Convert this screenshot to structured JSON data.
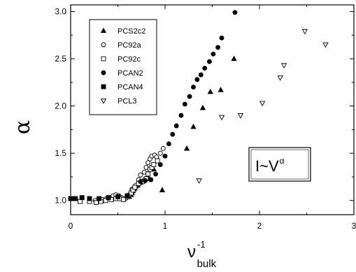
{
  "chart_data": {
    "type": "scatter",
    "title": "",
    "xlabel": {
      "base": "ν",
      "sup": "-1",
      "sub": "bulk"
    },
    "ylabel": "α",
    "xlim": [
      0,
      3
    ],
    "ylim": [
      0.85,
      3.07
    ],
    "x_ticks": [
      "0",
      "1",
      "2",
      "3"
    ],
    "y_ticks": [
      "1.0",
      "1.5",
      "2.0",
      "2.5",
      "3.0"
    ],
    "grid": false,
    "legend_position": "top-left",
    "annotation": {
      "base": "I~V",
      "sup": "α"
    },
    "series": [
      {
        "name": "PCS2c2",
        "marker": "triangle-up",
        "filled": true,
        "points": [
          [
            0.58,
            1.03
          ],
          [
            0.62,
            1.04
          ],
          [
            0.64,
            1.06
          ],
          [
            0.65,
            1.08
          ],
          [
            0.66,
            1.1
          ],
          [
            0.67,
            1.12
          ],
          [
            0.68,
            1.13
          ],
          [
            0.69,
            1.15
          ],
          [
            0.71,
            1.16
          ],
          [
            0.72,
            1.18
          ],
          [
            0.74,
            1.19
          ],
          [
            0.76,
            1.2
          ],
          [
            0.78,
            1.22
          ],
          [
            0.82,
            1.25
          ],
          [
            0.88,
            1.33
          ],
          [
            0.97,
            1.11
          ],
          [
            1.23,
            1.55
          ],
          [
            1.3,
            1.78
          ],
          [
            1.4,
            1.98
          ],
          [
            1.48,
            2.15
          ],
          [
            1.59,
            2.17
          ],
          [
            1.73,
            2.5
          ]
        ]
      },
      {
        "name": "PC92a",
        "marker": "circle",
        "filled": false,
        "points": [
          [
            0.2,
            1.0
          ],
          [
            0.26,
            1.0
          ],
          [
            0.3,
            1.01
          ],
          [
            0.34,
            1.01
          ],
          [
            0.38,
            1.02
          ],
          [
            0.4,
            1.03
          ],
          [
            0.43,
            1.02
          ],
          [
            0.45,
            1.05
          ],
          [
            0.48,
            1.06
          ],
          [
            0.51,
            1.05
          ],
          [
            0.54,
            1.03
          ],
          [
            0.56,
            1.01
          ],
          [
            0.58,
            1.02
          ],
          [
            0.62,
            1.06
          ],
          [
            0.65,
            1.12
          ],
          [
            0.69,
            1.16
          ],
          [
            0.72,
            1.22
          ],
          [
            0.74,
            1.27
          ],
          [
            0.78,
            1.3
          ],
          [
            0.8,
            1.35
          ],
          [
            0.82,
            1.4
          ],
          [
            0.84,
            1.44
          ],
          [
            0.86,
            1.47
          ],
          [
            0.89,
            1.48
          ],
          [
            0.91,
            1.46
          ],
          [
            0.95,
            1.5
          ],
          [
            0.98,
            1.55
          ]
        ]
      },
      {
        "name": "PC92c",
        "marker": "square",
        "filled": false,
        "points": [
          [
            0.1,
            0.99
          ],
          [
            0.2,
            0.99
          ],
          [
            0.27,
            0.98
          ],
          [
            0.32,
            0.99
          ],
          [
            0.37,
            1.0
          ],
          [
            0.43,
            1.01
          ],
          [
            0.48,
            1.02
          ],
          [
            0.52,
            1.02
          ],
          [
            0.56,
            1.01
          ],
          [
            0.6,
            1.04
          ],
          [
            0.64,
            1.08
          ],
          [
            0.66,
            1.11
          ],
          [
            0.68,
            1.14
          ],
          [
            0.72,
            1.18
          ],
          [
            0.76,
            1.2
          ],
          [
            0.8,
            1.23
          ],
          [
            0.82,
            1.28
          ],
          [
            0.84,
            1.33
          ],
          [
            0.86,
            1.35
          ],
          [
            0.88,
            1.38
          ],
          [
            0.92,
            1.42
          ]
        ]
      },
      {
        "name": "PCAN2",
        "marker": "circle",
        "filled": true,
        "points": [
          [
            0.74,
            1.2
          ],
          [
            0.79,
            1.21
          ],
          [
            0.85,
            1.22
          ],
          [
            0.9,
            1.28
          ],
          [
            0.95,
            1.38
          ],
          [
            1.0,
            1.47
          ],
          [
            1.04,
            1.6
          ],
          [
            1.08,
            1.7
          ],
          [
            1.12,
            1.79
          ],
          [
            1.17,
            1.9
          ],
          [
            1.21,
            2.02
          ],
          [
            1.26,
            2.1
          ],
          [
            1.3,
            2.2
          ],
          [
            1.34,
            2.28
          ],
          [
            1.38,
            2.33
          ],
          [
            1.42,
            2.4
          ],
          [
            1.47,
            2.47
          ],
          [
            1.51,
            2.55
          ],
          [
            1.56,
            2.62
          ],
          [
            1.6,
            2.72
          ],
          [
            1.74,
            2.99
          ]
        ]
      },
      {
        "name": "PCAN4",
        "marker": "square",
        "filled": true,
        "points": [
          [
            0.0,
            1.02
          ],
          [
            0.05,
            1.02
          ],
          [
            0.12,
            1.03
          ],
          [
            0.2,
            1.02
          ],
          [
            0.3,
            1.02
          ],
          [
            0.4,
            1.03
          ],
          [
            0.5,
            1.04
          ],
          [
            0.6,
            1.05
          ]
        ]
      },
      {
        "name": "PCL3",
        "marker": "triangle-down",
        "filled": false,
        "points": [
          [
            1.36,
            1.21
          ],
          [
            1.6,
            1.88
          ],
          [
            1.8,
            1.9
          ],
          [
            2.03,
            2.03
          ],
          [
            2.22,
            2.3
          ],
          [
            2.26,
            2.43
          ],
          [
            2.48,
            2.79
          ],
          [
            2.7,
            2.65
          ]
        ]
      }
    ]
  }
}
